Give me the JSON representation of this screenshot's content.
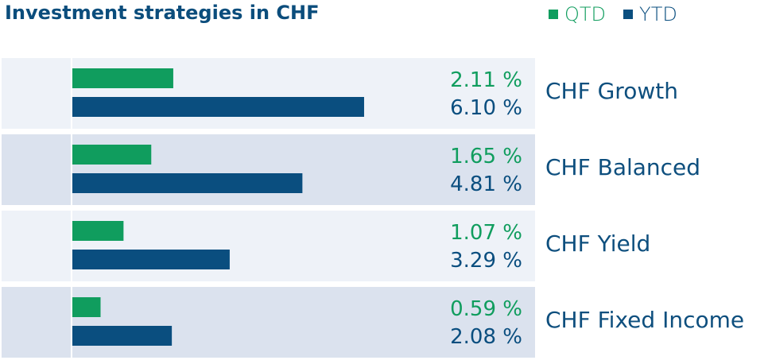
{
  "colors": {
    "qtd": "#109d5e",
    "ytd": "#0a4e7f",
    "band_light": "#eef2f8",
    "band_dark": "#dbe2ee",
    "label_text": "#0e4f7e"
  },
  "chart_data": {
    "type": "bar",
    "orientation": "horizontal",
    "title": "Investment strategies in CHF",
    "categories": [
      "CHF Growth",
      "CHF Balanced",
      "CHF Yield",
      "CHF Fixed Income"
    ],
    "series": [
      {
        "name": "QTD",
        "values": [
          2.11,
          1.65,
          1.07,
          0.59
        ],
        "labels": [
          "2.11 %",
          "1.65 %",
          "1.07 %",
          "0.59 %"
        ]
      },
      {
        "name": "YTD",
        "values": [
          6.1,
          4.81,
          3.29,
          2.08
        ],
        "labels": [
          "6.10 %",
          "4.81 %",
          "3.29 %",
          "2.08 %"
        ]
      }
    ],
    "legend": "top-right",
    "grid": false
  }
}
